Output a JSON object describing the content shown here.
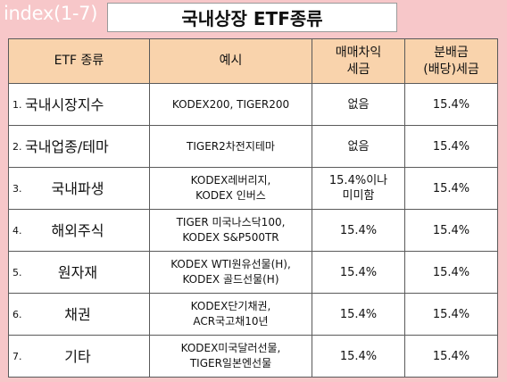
{
  "header": {
    "index_label": "index(1-7)",
    "title": "국내상장 ETF종류"
  },
  "table": {
    "columns": [
      "ETF 종류",
      "예시",
      "매매차익\n세금",
      "분배금\n(배당)세금"
    ],
    "rows": [
      {
        "num": "1.",
        "category": "국내시장지수",
        "example": "KODEX200, TIGER200",
        "trade_tax": "없음",
        "dividend_tax": "15.4%"
      },
      {
        "num": "2.",
        "category": "국내업종/테마",
        "example": "TIGER2차전지테마",
        "trade_tax": "없음",
        "dividend_tax": "15.4%"
      },
      {
        "num": "3.",
        "category": "국내파생",
        "example": "KODEX레버리지,\nKODEX 인버스",
        "trade_tax": "15.4%이나\n미미함",
        "dividend_tax": "15.4%"
      },
      {
        "num": "4.",
        "category": "해외주식",
        "example": "TIGER 미국나스닥100,\nKODEX S&P500TR",
        "trade_tax": "15.4%",
        "dividend_tax": "15.4%"
      },
      {
        "num": "5.",
        "category": "원자재",
        "example": "KODEX WTI원유선물(H),\nKODEX 골드선물(H)",
        "trade_tax": "15.4%",
        "dividend_tax": "15.4%"
      },
      {
        "num": "6.",
        "category": "채권",
        "example": "KODEX단기채권,\nACR국고채10년",
        "trade_tax": "15.4%",
        "dividend_tax": "15.4%"
      },
      {
        "num": "7.",
        "category": "기타",
        "example": "KODEX미국달러선물,\nTIGER일본엔선물",
        "trade_tax": "15.4%",
        "dividend_tax": "15.4%"
      }
    ]
  }
}
